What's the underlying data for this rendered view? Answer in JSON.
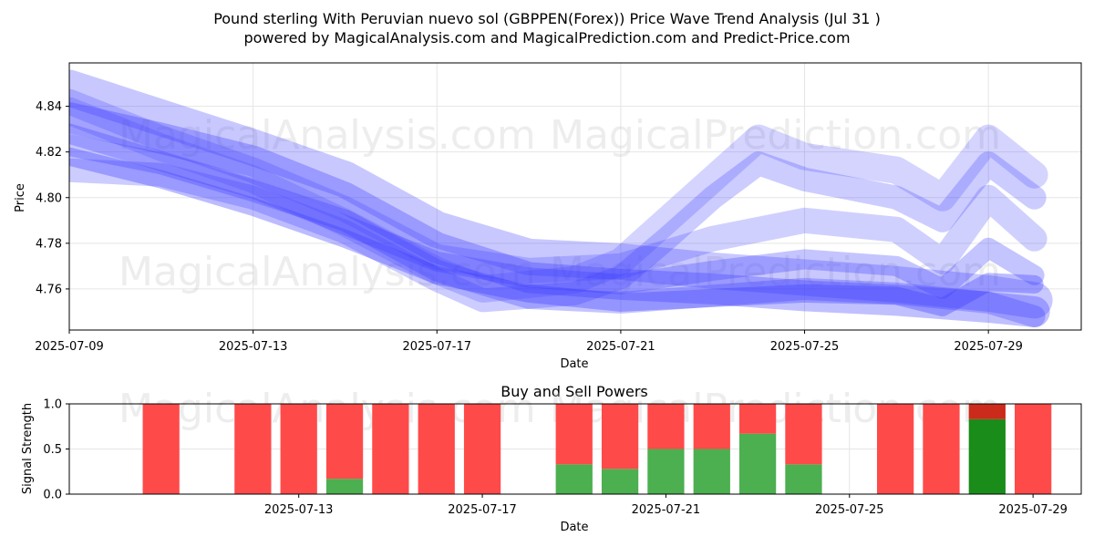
{
  "title_line1": "Pound sterling With Peruvian nuevo sol (GBPPEN(Forex)) Price Wave Trend Analysis (Jul 31 )",
  "title_line2": "powered by MagicalAnalysis.com and MagicalPrediction.com and Predict-Price.com",
  "watermarks": [
    "MagicalAnalysis.com",
    "MagicalPrediction.com"
  ],
  "colors": {
    "wave": "#3b3bff",
    "sell": "#ff4a4a",
    "buy": "#4caf50",
    "buy_strong": "#1a8c1a",
    "sell_strong": "#cc2a1a"
  },
  "chart_data": [
    {
      "type": "area",
      "xlabel": "Date",
      "ylabel": "Price",
      "ylim": [
        4.742,
        4.859
      ],
      "x_ticks": [
        "2025-07-09",
        "2025-07-13",
        "2025-07-17",
        "2025-07-21",
        "2025-07-25",
        "2025-07-29"
      ],
      "y_ticks": [
        4.76,
        4.78,
        4.8,
        4.82,
        4.84
      ],
      "grid": true,
      "series": [
        {
          "x": [
            "2025-07-09",
            "2025-07-11",
            "2025-07-13",
            "2025-07-15",
            "2025-07-17",
            "2025-07-19",
            "2025-07-21",
            "2025-07-23",
            "2025-07-25",
            "2025-07-27",
            "2025-07-29",
            "2025-07-30"
          ],
          "values": [
            4.848,
            4.835,
            4.822,
            4.808,
            4.786,
            4.774,
            4.772,
            4.768,
            4.765,
            4.762,
            4.758,
            4.755
          ]
        },
        {
          "x": [
            "2025-07-09",
            "2025-07-11",
            "2025-07-13",
            "2025-07-15",
            "2025-07-17",
            "2025-07-19",
            "2025-07-21",
            "2025-07-23",
            "2025-07-25",
            "2025-07-27",
            "2025-07-29",
            "2025-07-30"
          ],
          "values": [
            4.835,
            4.826,
            4.816,
            4.8,
            4.778,
            4.765,
            4.762,
            4.76,
            4.757,
            4.755,
            4.752,
            4.75
          ]
        },
        {
          "x": [
            "2025-07-09",
            "2025-07-11",
            "2025-07-13",
            "2025-07-15",
            "2025-07-17",
            "2025-07-18",
            "2025-07-20",
            "2025-07-21",
            "2025-07-22",
            "2025-07-23",
            "2025-07-24",
            "2025-07-25",
            "2025-07-27",
            "2025-07-28",
            "2025-07-29",
            "2025-07-30"
          ],
          "values": [
            4.838,
            4.822,
            4.808,
            4.789,
            4.768,
            4.76,
            4.764,
            4.772,
            4.79,
            4.808,
            4.826,
            4.818,
            4.812,
            4.8,
            4.826,
            4.81
          ]
        },
        {
          "x": [
            "2025-07-09",
            "2025-07-11",
            "2025-07-13",
            "2025-07-15",
            "2025-07-17",
            "2025-07-18",
            "2025-07-20",
            "2025-07-21",
            "2025-07-22",
            "2025-07-23",
            "2025-07-24",
            "2025-07-25",
            "2025-07-27",
            "2025-07-28",
            "2025-07-29",
            "2025-07-30"
          ],
          "values": [
            4.812,
            4.81,
            4.8,
            4.785,
            4.764,
            4.755,
            4.758,
            4.765,
            4.782,
            4.8,
            4.815,
            4.808,
            4.8,
            4.79,
            4.815,
            4.8
          ]
        },
        {
          "x": [
            "2025-07-09",
            "2025-07-11",
            "2025-07-13",
            "2025-07-15",
            "2025-07-17",
            "2025-07-19",
            "2025-07-21",
            "2025-07-23",
            "2025-07-25",
            "2025-07-27",
            "2025-07-28",
            "2025-07-29",
            "2025-07-30"
          ],
          "values": [
            4.842,
            4.826,
            4.812,
            4.795,
            4.774,
            4.768,
            4.77,
            4.782,
            4.79,
            4.786,
            4.772,
            4.8,
            4.782
          ]
        },
        {
          "x": [
            "2025-07-09",
            "2025-07-11",
            "2025-07-13",
            "2025-07-15",
            "2025-07-17",
            "2025-07-19",
            "2025-07-21",
            "2025-07-23",
            "2025-07-25",
            "2025-07-27",
            "2025-07-28",
            "2025-07-29",
            "2025-07-30"
          ],
          "values": [
            4.828,
            4.816,
            4.804,
            4.788,
            4.772,
            4.765,
            4.762,
            4.768,
            4.773,
            4.77,
            4.76,
            4.778,
            4.766
          ]
        },
        {
          "x": [
            "2025-07-09",
            "2025-07-11",
            "2025-07-13",
            "2025-07-15",
            "2025-07-17",
            "2025-07-19",
            "2025-07-21",
            "2025-07-23",
            "2025-07-25",
            "2025-07-27",
            "2025-07-28",
            "2025-07-29",
            "2025-07-30"
          ],
          "values": [
            4.818,
            4.808,
            4.796,
            4.782,
            4.766,
            4.758,
            4.754,
            4.756,
            4.758,
            4.757,
            4.752,
            4.763,
            4.762
          ]
        },
        {
          "x": [
            "2025-07-09",
            "2025-07-11",
            "2025-07-13",
            "2025-07-15",
            "2025-07-17",
            "2025-07-19",
            "2025-07-21",
            "2025-07-23",
            "2025-07-25",
            "2025-07-27",
            "2025-07-29",
            "2025-07-30"
          ],
          "values": [
            4.823,
            4.815,
            4.803,
            4.79,
            4.768,
            4.756,
            4.754,
            4.757,
            4.76,
            4.758,
            4.754,
            4.748
          ]
        }
      ]
    },
    {
      "type": "bar",
      "title": "Buy and Sell Powers",
      "xlabel": "Date",
      "ylabel": "Signal Strength",
      "ylim": [
        0,
        1.0
      ],
      "y_ticks": [
        0.0,
        0.5,
        1.0
      ],
      "x_ticks": [
        "2025-07-13",
        "2025-07-17",
        "2025-07-21",
        "2025-07-25",
        "2025-07-29"
      ],
      "categories": [
        "2025-07-10",
        "2025-07-12",
        "2025-07-13",
        "2025-07-14",
        "2025-07-15",
        "2025-07-16",
        "2025-07-17",
        "2025-07-19",
        "2025-07-20",
        "2025-07-21",
        "2025-07-22",
        "2025-07-23",
        "2025-07-24",
        "2025-07-26",
        "2025-07-27",
        "2025-07-28",
        "2025-07-29"
      ],
      "series": [
        {
          "name": "Buy",
          "values": [
            0.0,
            0.0,
            0.0,
            0.17,
            0.0,
            0.0,
            0.0,
            0.33,
            0.28,
            0.5,
            0.5,
            0.67,
            0.33,
            0.0,
            0.0,
            0.83,
            0.0
          ]
        },
        {
          "name": "Sell",
          "values": [
            1.0,
            1.0,
            1.0,
            0.83,
            1.0,
            1.0,
            1.0,
            0.67,
            0.72,
            0.5,
            0.5,
            0.33,
            0.67,
            1.0,
            1.0,
            0.17,
            1.0
          ]
        }
      ],
      "strong_index": 15
    }
  ]
}
